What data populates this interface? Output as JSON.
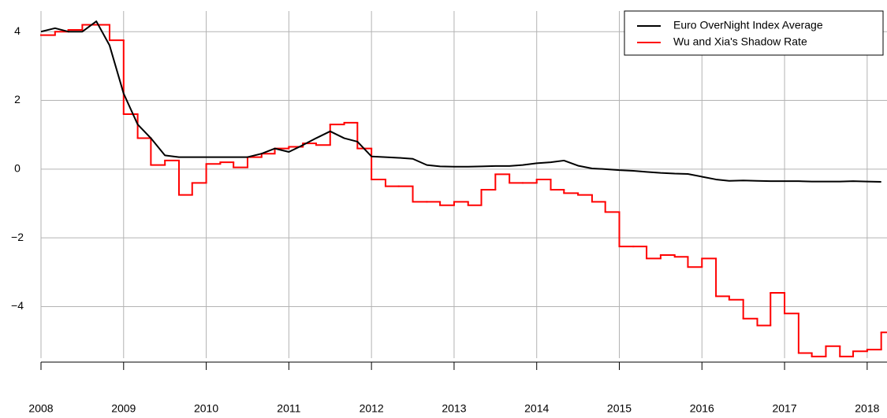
{
  "chart_data": {
    "type": "line",
    "x": [
      2008.0,
      2008.17,
      2008.33,
      2008.5,
      2008.67,
      2008.83,
      2009.0,
      2009.17,
      2009.33,
      2009.5,
      2009.67,
      2009.83,
      2010.0,
      2010.17,
      2010.33,
      2010.5,
      2010.67,
      2010.83,
      2011.0,
      2011.17,
      2011.33,
      2011.5,
      2011.67,
      2011.83,
      2012.0,
      2012.17,
      2012.33,
      2012.5,
      2012.67,
      2012.83,
      2013.0,
      2013.17,
      2013.33,
      2013.5,
      2013.67,
      2013.83,
      2014.0,
      2014.17,
      2014.33,
      2014.5,
      2014.67,
      2014.83,
      2015.0,
      2015.17,
      2015.33,
      2015.5,
      2015.67,
      2015.83,
      2016.0,
      2016.17,
      2016.33,
      2016.5,
      2016.67,
      2016.83,
      2017.0,
      2017.17,
      2017.33,
      2017.5,
      2017.67,
      2017.83,
      2018.0,
      2018.17
    ],
    "series": [
      {
        "name": "Euro OverNight Index Average",
        "color": "#000000",
        "step": false,
        "values": [
          4.0,
          4.1,
          4.0,
          4.0,
          4.3,
          3.6,
          2.2,
          1.3,
          0.9,
          0.4,
          0.35,
          0.35,
          0.35,
          0.35,
          0.35,
          0.35,
          0.45,
          0.6,
          0.5,
          0.7,
          0.9,
          1.1,
          0.9,
          0.8,
          0.37,
          0.35,
          0.33,
          0.3,
          0.12,
          0.08,
          0.07,
          0.07,
          0.08,
          0.09,
          0.09,
          0.12,
          0.17,
          0.2,
          0.25,
          0.1,
          0.02,
          0.0,
          -0.03,
          -0.05,
          -0.08,
          -0.11,
          -0.13,
          -0.14,
          -0.22,
          -0.3,
          -0.34,
          -0.33,
          -0.34,
          -0.35,
          -0.35,
          -0.35,
          -0.36,
          -0.36,
          -0.36,
          -0.35,
          -0.36,
          -0.37
        ]
      },
      {
        "name": "Wu and Xia's Shadow Rate",
        "color": "#ff0000",
        "step": true,
        "values": [
          3.9,
          4.0,
          4.05,
          4.2,
          4.2,
          3.75,
          1.6,
          0.9,
          0.12,
          0.25,
          -0.75,
          -0.4,
          0.15,
          0.2,
          0.05,
          0.35,
          0.45,
          0.6,
          0.65,
          0.75,
          0.7,
          1.3,
          1.35,
          0.6,
          -0.3,
          -0.5,
          -0.5,
          -0.95,
          -0.95,
          -1.05,
          -0.95,
          -1.05,
          -0.6,
          -0.15,
          -0.4,
          -0.4,
          -0.3,
          -0.6,
          -0.7,
          -0.75,
          -0.95,
          -1.25,
          -2.25,
          -2.25,
          -2.6,
          -2.5,
          -2.55,
          -2.85,
          -2.6,
          -3.7,
          -3.8,
          -4.35,
          -4.55,
          -3.6,
          -4.2,
          -5.35,
          -5.45,
          -5.15,
          -5.45,
          -5.3,
          -5.25,
          -4.75
        ]
      }
    ],
    "xlim": [
      2008,
      2018.24
    ],
    "ylim": [
      -5.5,
      4.6
    ],
    "xticks": [
      2008,
      2009,
      2010,
      2011,
      2012,
      2013,
      2014,
      2015,
      2016,
      2017,
      2018
    ],
    "yticks": [
      {
        "value": -4,
        "label": "−4"
      },
      {
        "value": -2,
        "label": "−2"
      },
      0,
      2,
      4
    ],
    "grid": true,
    "legend": "top-right"
  }
}
